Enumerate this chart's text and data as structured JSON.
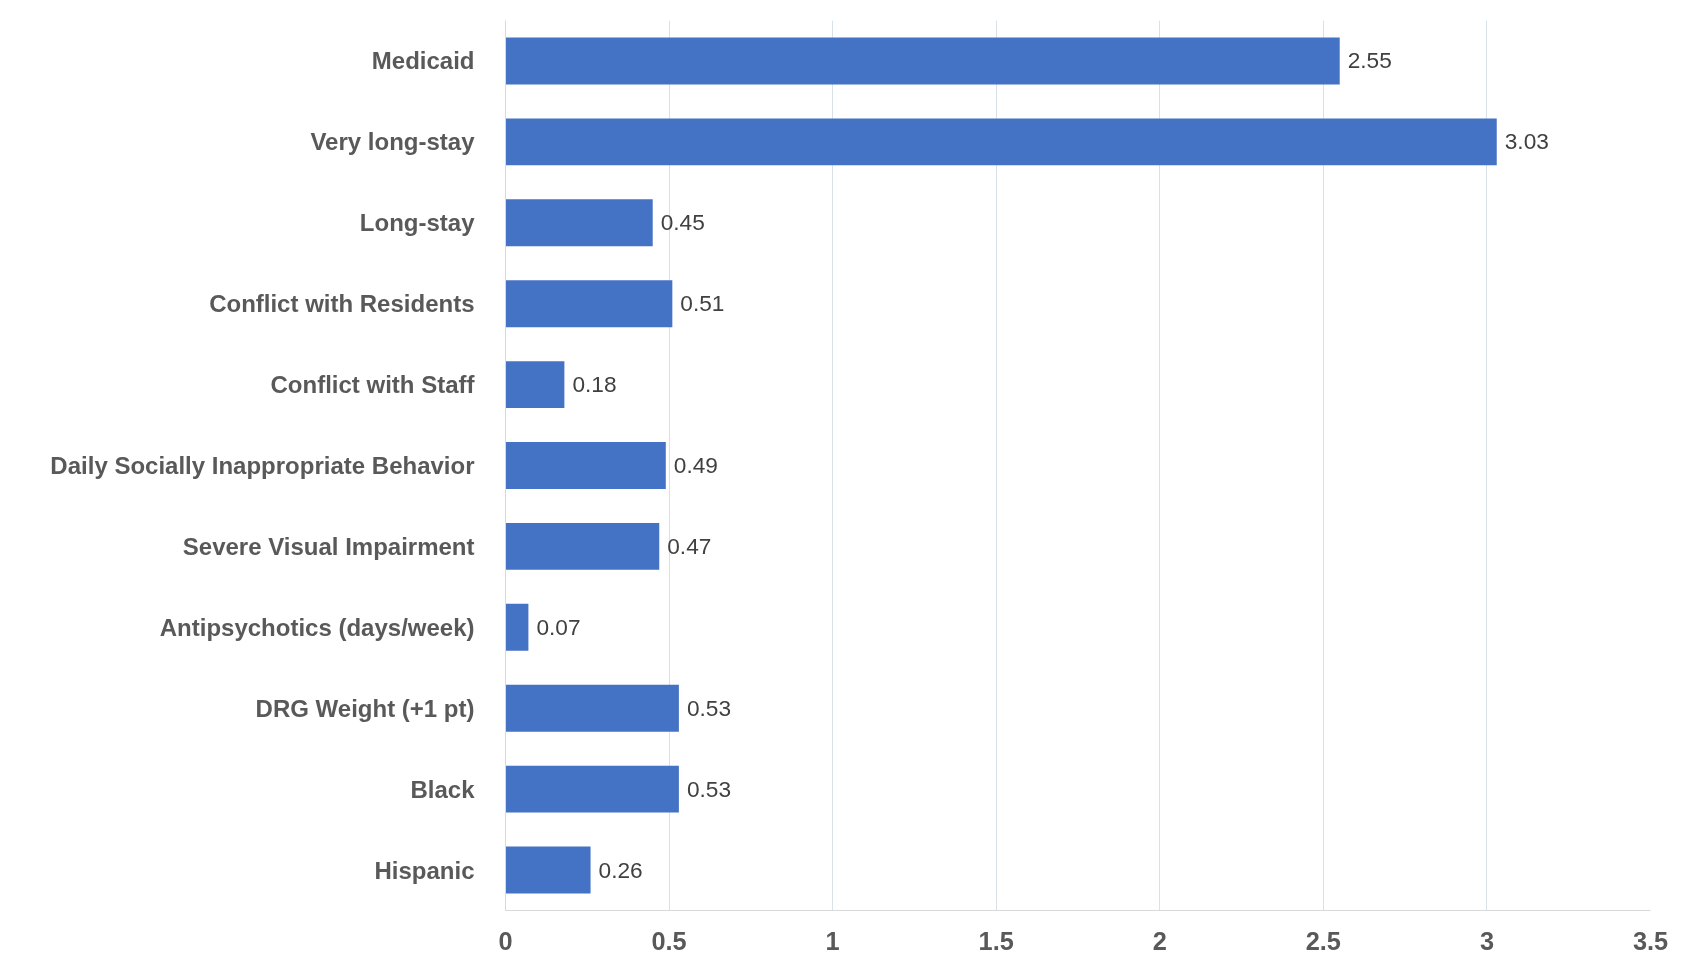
{
  "chart_data": {
    "type": "bar",
    "orientation": "horizontal",
    "categories": [
      "Medicaid",
      "Very long-stay",
      "Long-stay",
      "Conflict with Residents",
      "Conflict with Staff",
      "Daily Socially Inappropriate Behavior",
      "Severe Visual Impairment",
      "Antipsychotics (days/week)",
      "DRG Weight (+1 pt)",
      "Black",
      "Hispanic"
    ],
    "values": [
      2.55,
      3.03,
      0.45,
      0.51,
      0.18,
      0.49,
      0.47,
      0.07,
      0.53,
      0.53,
      0.26
    ],
    "color": "#4472c4",
    "xlim": [
      0,
      3.5
    ],
    "xticks": [
      0,
      0.5,
      1,
      1.5,
      2,
      2.5,
      3,
      3.5
    ],
    "grid": "x",
    "data_labels": true
  }
}
